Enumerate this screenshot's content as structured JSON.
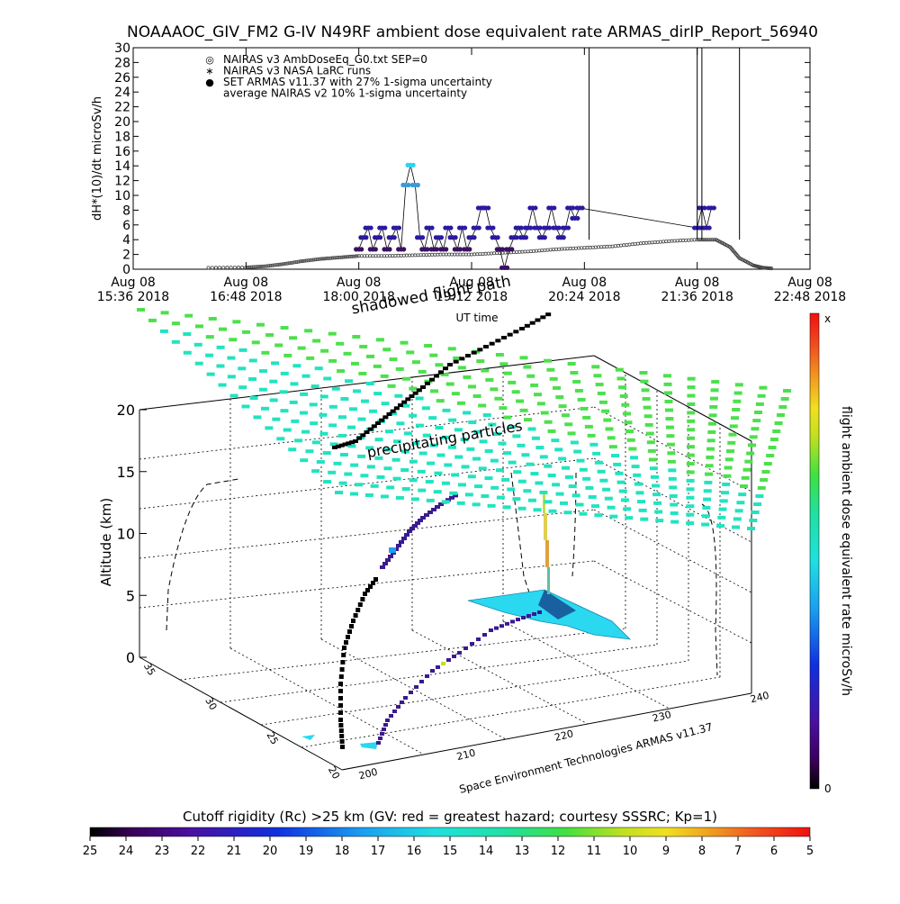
{
  "title": "NOAAAOC_GIV_FM2 G-IV   N49RF  ambient dose equivalent rate ARMAS_dirIP_Report_56940",
  "colors": {
    "nairas_v3": "#444444",
    "set_armas": "#2a1aa0",
    "set_armas_low": "#3a1060",
    "set_armas_high": "#2ad4f0",
    "set_armas_mid": "#3a9ad8",
    "flight_path": "#000000",
    "plane_green": "#4de04d",
    "plane_cyan": "#22e3c0",
    "surface_cyan": "#2ad8f0"
  },
  "chart_data": [
    {
      "type": "line",
      "name": "time-series",
      "ylabel": "dH*(10)/dt microSv/h",
      "xlabel": "UT time",
      "ylim": [
        0,
        30
      ],
      "yticks": [
        "0",
        "2",
        "4",
        "6",
        "8",
        "10",
        "12",
        "14",
        "16",
        "18",
        "20",
        "22",
        "24",
        "26",
        "28",
        "30"
      ],
      "xticks": [
        {
          "date": "Aug 08",
          "time": "15:36 2018"
        },
        {
          "date": "Aug 08",
          "time": "16:48 2018"
        },
        {
          "date": "Aug 08",
          "time": "18:00 2018"
        },
        {
          "date": "Aug 08",
          "time": "19:12 2018"
        },
        {
          "date": "Aug 08",
          "time": "20:24 2018"
        },
        {
          "date": "Aug 08",
          "time": "21:36 2018"
        },
        {
          "date": "Aug 08",
          "time": "22:48 2018"
        }
      ],
      "xlim_hours": [
        15.6,
        22.8
      ],
      "legend": [
        {
          "symbol": "◎",
          "label": "NAIRAS v3 AmbDoseEq_G0.txt SEP=0"
        },
        {
          "symbol": "∗",
          "label": "NAIRAS v3 NASA LaRC runs"
        },
        {
          "symbol": "●",
          "label": "SET ARMAS v11.37 with 27% 1-sigma uncertainty"
        },
        {
          "symbol": "",
          "label": "average NAIRAS v2 10% 1-sigma uncertainty"
        }
      ],
      "legend_position": "top-left",
      "nairas_series": {
        "x_hours": [
          16.4,
          16.8,
          17.0,
          17.2,
          17.4,
          17.6,
          17.8,
          18.0,
          18.3,
          18.6,
          18.9,
          19.2,
          19.5,
          19.8,
          20.1,
          20.4,
          20.7,
          21.0,
          21.3,
          21.6,
          21.8,
          21.95,
          22.05,
          22.2,
          22.3,
          22.4
        ],
        "y": [
          0.2,
          0.25,
          0.4,
          0.7,
          1.1,
          1.4,
          1.6,
          1.8,
          1.8,
          1.9,
          2.0,
          2.0,
          2.2,
          2.4,
          2.7,
          2.9,
          3.1,
          3.5,
          3.8,
          4.0,
          4.0,
          3.0,
          1.5,
          0.5,
          0.2,
          0.1
        ]
      },
      "armas_series": {
        "x_hours": [
          18.0,
          18.05,
          18.1,
          18.15,
          18.2,
          18.25,
          18.3,
          18.35,
          18.4,
          18.45,
          18.5,
          18.55,
          18.6,
          18.65,
          18.7,
          18.75,
          18.8,
          18.85,
          18.9,
          18.95,
          19.0,
          19.05,
          19.1,
          19.15,
          19.2,
          19.25,
          19.3,
          19.35,
          19.4,
          19.45,
          19.5,
          19.55,
          19.6,
          19.65,
          19.7,
          19.75,
          19.8,
          19.85,
          19.9,
          19.95,
          20.0,
          20.05,
          20.1,
          20.15,
          20.2,
          20.25,
          20.3,
          20.35,
          21.6,
          21.65,
          21.7,
          21.75
        ],
        "y": [
          2.7,
          4.3,
          5.6,
          2.7,
          4.3,
          5.6,
          2.7,
          4.3,
          5.6,
          2.7,
          11.4,
          14.1,
          11.4,
          4.3,
          2.7,
          5.6,
          2.7,
          4.3,
          2.7,
          5.6,
          4.3,
          2.7,
          5.6,
          2.7,
          4.3,
          5.6,
          8.3,
          8.3,
          5.6,
          4.3,
          2.7,
          0.2,
          2.7,
          4.3,
          5.6,
          4.3,
          5.6,
          8.3,
          5.6,
          4.3,
          5.6,
          8.3,
          5.6,
          4.3,
          5.6,
          8.3,
          6.9,
          8.3,
          5.6,
          8.3,
          5.6,
          8.3
        ]
      },
      "spikes_x_hours": [
        20.45,
        21.6,
        21.65,
        22.05
      ]
    },
    {
      "type": "scatter",
      "name": "3d-flight-path",
      "zlabel": "Altitude (km)",
      "zticks": [
        "0",
        "5",
        "10",
        "15",
        "20"
      ],
      "x_ticks": [
        "200",
        "210",
        "220",
        "230",
        "240"
      ],
      "y_ticks": [
        "20",
        "25",
        "30",
        "35"
      ],
      "x_axis_note": "Space Environment Technologies ARMAS v11.37",
      "annotations": [
        "precipitating particles",
        "shadowed flight path"
      ],
      "colorbar_right": {
        "label": "flight ambient dose equivalent rate microSv/h",
        "top": "x",
        "bottom": "0"
      },
      "colorbar_bottom": {
        "label": "Cutoff rigidity (Rc) >25 km (GV: red = greatest hazard; courtesy SSSRC; Kp=1)",
        "ticks": [
          "25",
          "24",
          "23",
          "22",
          "21",
          "20",
          "19",
          "18",
          "17",
          "16",
          "15",
          "14",
          "13",
          "12",
          "11",
          "10",
          "9",
          "8",
          "7",
          "6",
          "5"
        ]
      }
    }
  ]
}
